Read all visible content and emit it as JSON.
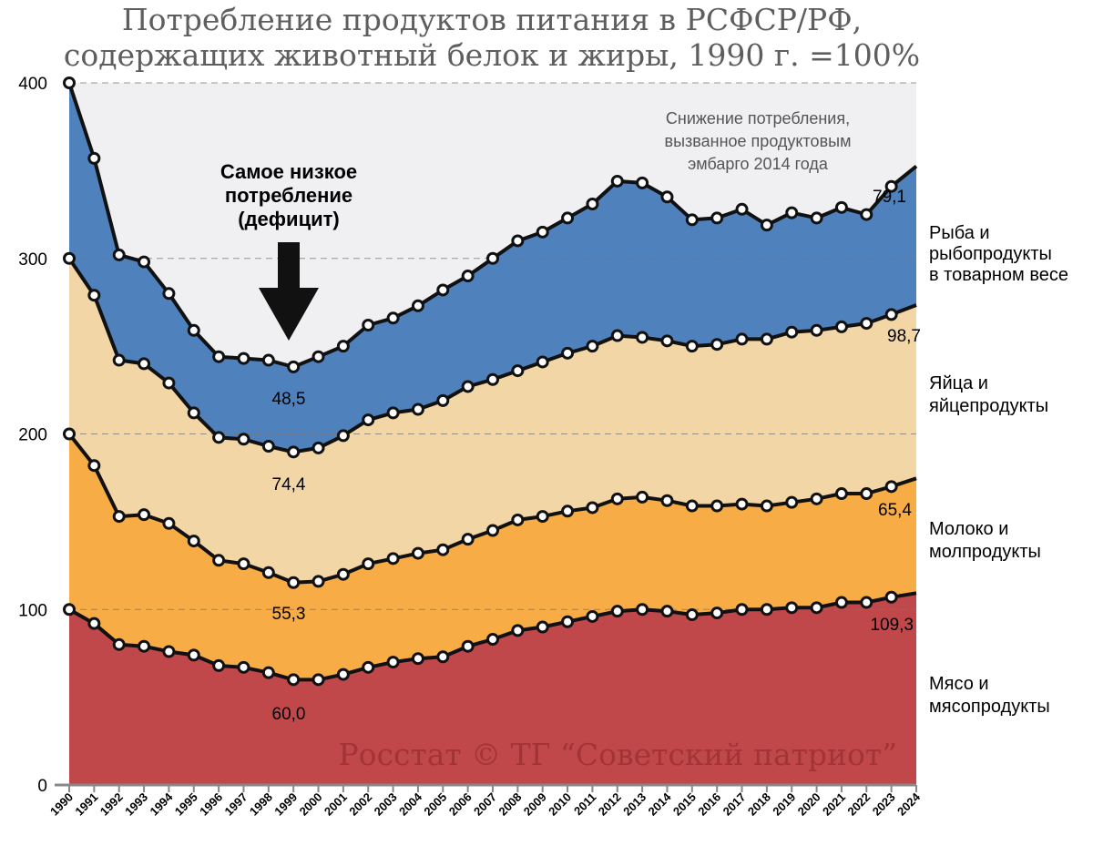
{
  "chart_data": {
    "type": "area",
    "stacked": true,
    "title_lines": [
      "Потребление продуктов питания в РСФСР/РФ,",
      "содержащих животный белок и жиры, 1990 г. =100%"
    ],
    "ylim": [
      0,
      400
    ],
    "yticks": [
      "0",
      "100",
      "200",
      "300",
      "400"
    ],
    "grid": "dashed horizontal",
    "x": [
      "1990",
      "1991",
      "1992",
      "1993",
      "1994",
      "1995",
      "1996",
      "1997",
      "1998",
      "1999",
      "2000",
      "2001",
      "2002",
      "2003",
      "2004",
      "2005",
      "2006",
      "2007",
      "2008",
      "2009",
      "2010",
      "2011",
      "2012",
      "2013",
      "2014",
      "2015",
      "2016",
      "2017",
      "2018",
      "2019",
      "2020",
      "2021",
      "2022",
      "2023",
      "2024"
    ],
    "series": [
      {
        "name": "Мясо и мясопродукты",
        "legend_lines": [
          "Мясо и",
          "мясопродукты"
        ],
        "color": "#c0484a",
        "cumulative": [
          100,
          92,
          80,
          79,
          76,
          74,
          68,
          67,
          64,
          60,
          60,
          63,
          67,
          70,
          72,
          73,
          79,
          83,
          88,
          90,
          93,
          96,
          99,
          100,
          99,
          97,
          98,
          100,
          100,
          101,
          101,
          104,
          104,
          107,
          109.3
        ]
      },
      {
        "name": "Молоко и молпродукты",
        "legend_lines": [
          "Молоко и",
          "молпродукты"
        ],
        "color": "#f8ac45",
        "cumulative": [
          200,
          182,
          153,
          154,
          149,
          139,
          128,
          126,
          121,
          115.3,
          116,
          120,
          126,
          129,
          132,
          134,
          140,
          145,
          151,
          153,
          156,
          158,
          163,
          164,
          162,
          159,
          159,
          160,
          159,
          161,
          163,
          166,
          166,
          170,
          174.7
        ]
      },
      {
        "name": "Яйца и яйцепродукты",
        "legend_lines": [
          "Яйца и",
          "яйцепродукты"
        ],
        "color": "#f3d6a6",
        "cumulative": [
          300,
          279,
          242,
          240,
          229,
          212,
          198,
          197,
          193,
          189.7,
          192,
          199,
          208,
          212,
          214,
          219,
          227,
          231,
          236,
          241,
          246,
          250,
          256,
          255,
          253,
          250,
          251,
          254,
          254,
          258,
          259,
          261,
          263,
          268,
          273.4
        ]
      },
      {
        "name": "Рыба и рыбопродукты в товарном весе",
        "legend_lines": [
          "Рыба и",
          "рыбопродукты",
          "в товарном весе"
        ],
        "color": "#4f81bd",
        "cumulative": [
          400,
          357,
          302,
          298,
          280,
          259,
          244,
          243,
          242,
          238.2,
          244,
          250,
          262,
          266,
          273,
          282,
          290,
          300,
          310,
          315,
          323,
          331,
          344,
          343,
          335,
          322,
          323,
          328,
          319,
          326,
          323,
          329,
          325,
          341,
          352.5
        ]
      }
    ],
    "value_labels": {
      "min_1999": [
        "60,0",
        "55,3",
        "74,4",
        "48,5"
      ],
      "end_2024": [
        "109,3",
        "65,4",
        "98,7",
        "79,1"
      ]
    },
    "annotations": {
      "deficit": [
        "Самое низкое",
        "потребление",
        "(дефицит)"
      ],
      "embargo": [
        "Снижение потребления,",
        "вызванное продуктовым",
        "эмбарго 2014 года"
      ]
    },
    "watermark": "Росстат © ТГ “Советский патриот”"
  }
}
